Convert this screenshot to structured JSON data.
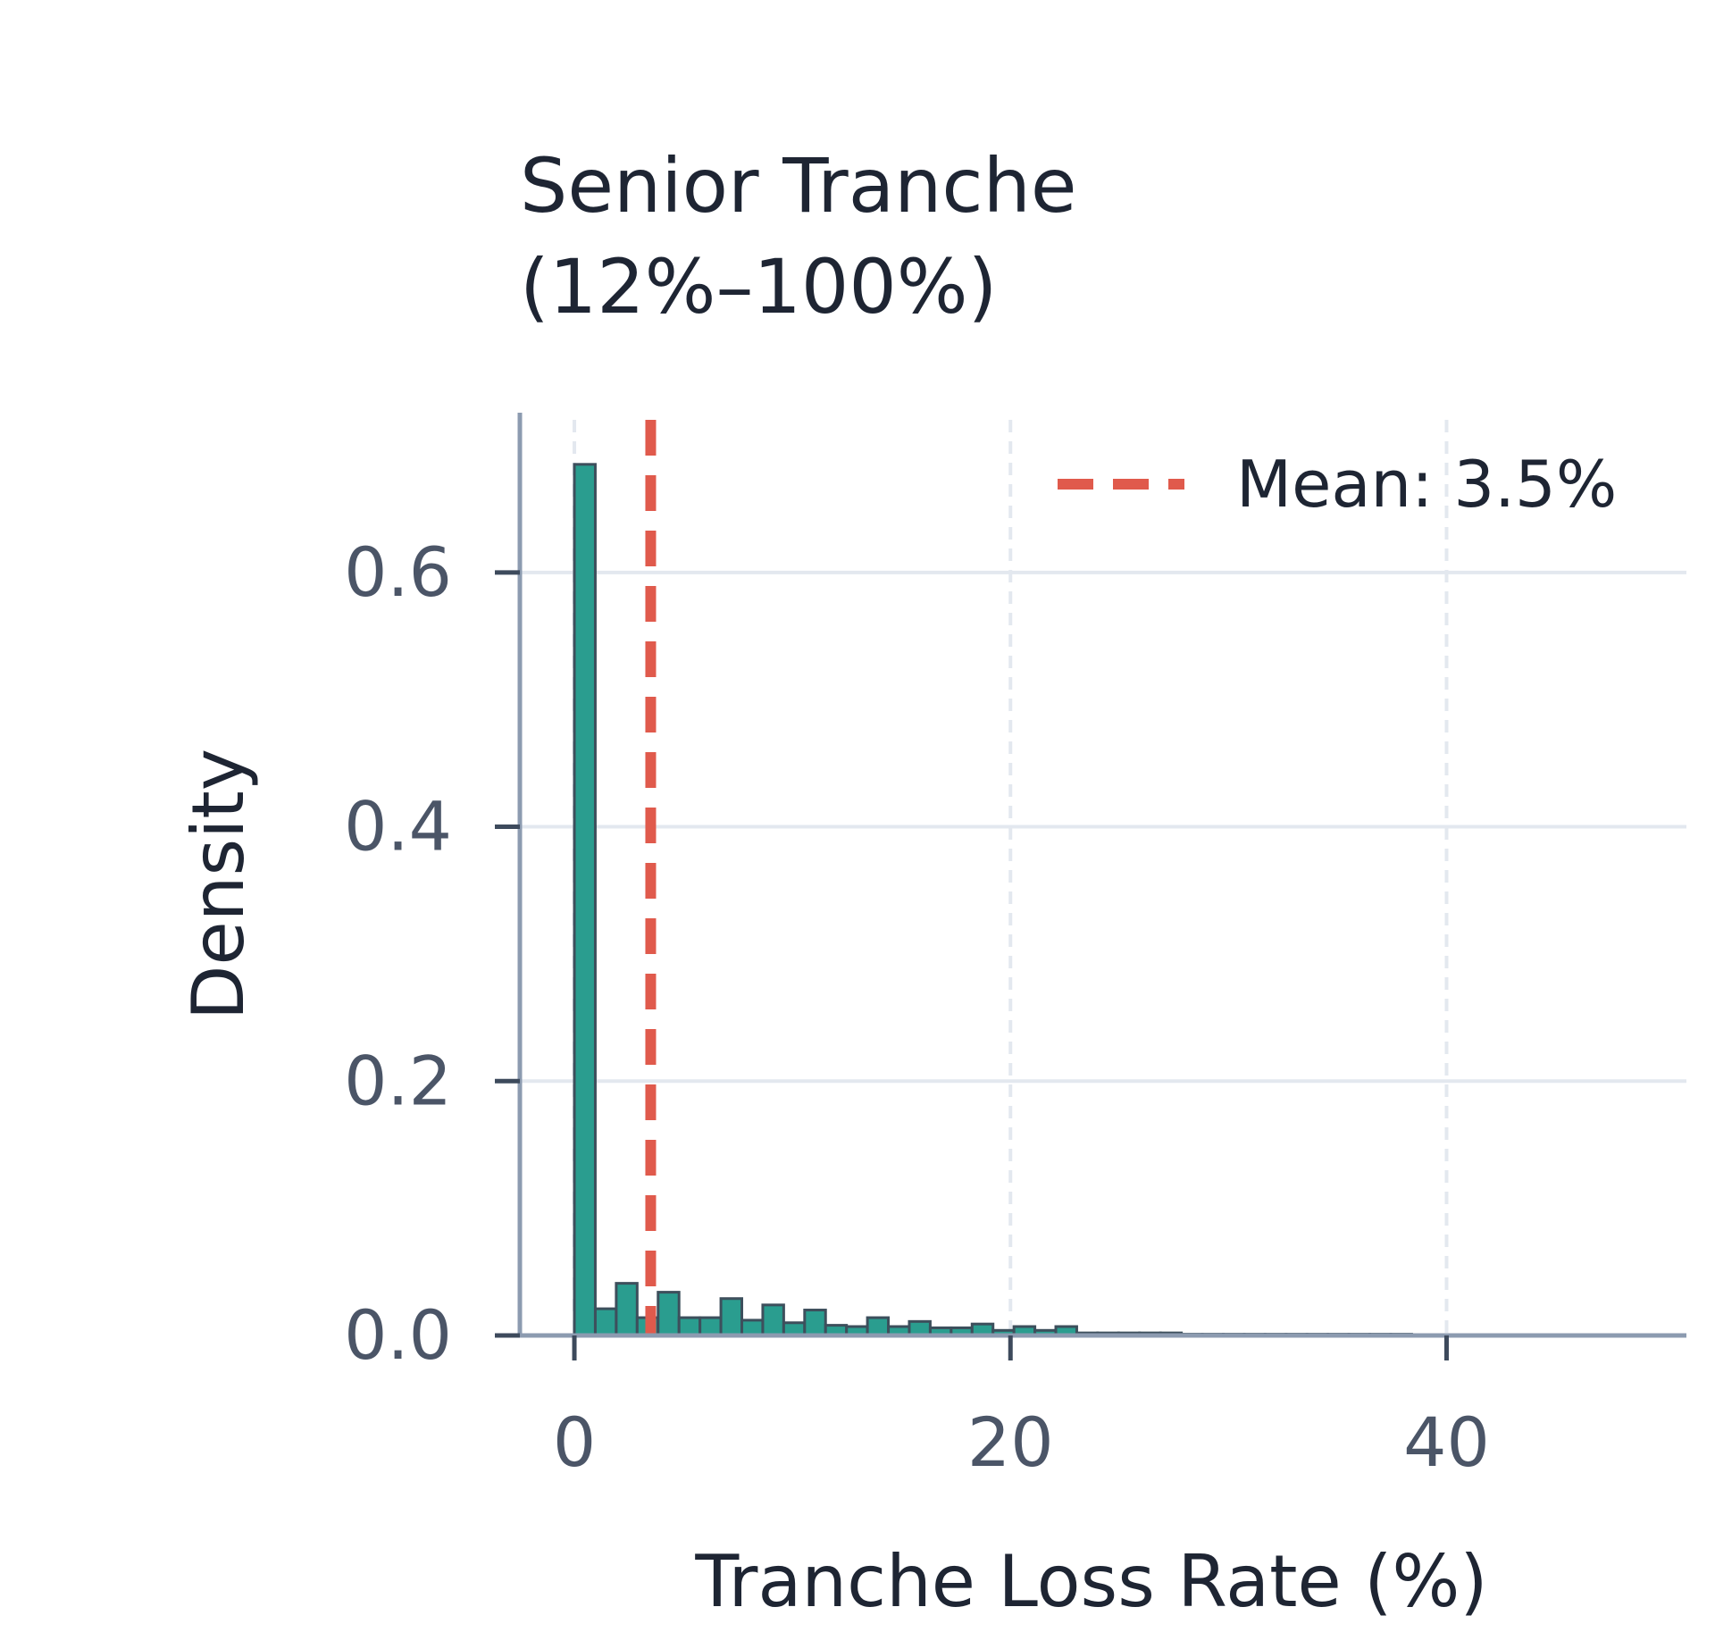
{
  "chart_data": {
    "type": "bar",
    "title_lines": [
      "Senior Tranche",
      "(12%–100%)"
    ],
    "xlabel": "Tranche Loss Rate (%)",
    "ylabel": "Density",
    "xlim": [
      -2.5,
      51
    ],
    "ylim": [
      0,
      0.72
    ],
    "xticks": [
      0,
      20,
      40
    ],
    "yticks": [
      0.0,
      0.2,
      0.4,
      0.6
    ],
    "xtick_labels": [
      "0",
      "20",
      "40"
    ],
    "ytick_labels": [
      "0.0",
      "0.2",
      "0.4",
      "0.6"
    ],
    "grid": true,
    "bin_width": 0.96,
    "bin_start": 0,
    "values": [
      0.685,
      0.021,
      0.041,
      0.014,
      0.034,
      0.014,
      0.014,
      0.029,
      0.012,
      0.024,
      0.01,
      0.02,
      0.008,
      0.007,
      0.014,
      0.007,
      0.011,
      0.006,
      0.006,
      0.009,
      0.004,
      0.007,
      0.004,
      0.007,
      0.002,
      0.002,
      0.002,
      0.002,
      0.002,
      0.001,
      0.001,
      0.001,
      0.001,
      0.001,
      0.001,
      0.001,
      0.001,
      0.001,
      0.001,
      0.001
    ],
    "mean_line": {
      "x": 3.5,
      "label": "Mean: 3.5%"
    },
    "legend_position": "top-right",
    "colors": {
      "bar_fill": "#2a9d8f",
      "bar_edge": "#3d4f5c",
      "mean_line": "#e05a4c",
      "axis": "#8c9bb0",
      "grid": "#e3e8ef",
      "text": "#1e2533",
      "tick_text": "#4b5567"
    }
  }
}
